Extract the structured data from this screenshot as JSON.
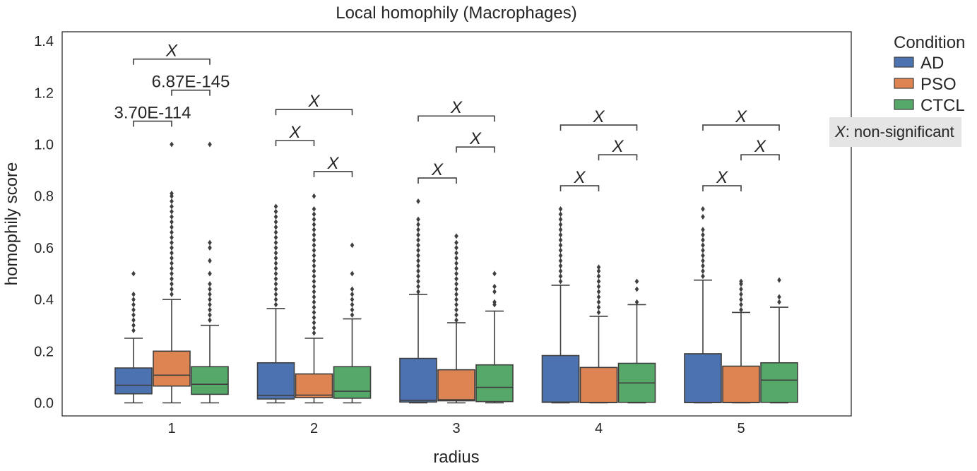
{
  "chart_data": {
    "type": "box",
    "title": "Local homophily (Macrophages)",
    "xlabel": "radius",
    "ylabel": "homophily score",
    "categories": [
      "1",
      "2",
      "3",
      "4",
      "5"
    ],
    "ylim": [
      -0.05,
      1.44
    ],
    "yticks": [
      "0.0",
      "0.2",
      "0.4",
      "0.6",
      "0.8",
      "1.0",
      "1.2",
      "1.4"
    ],
    "grid": false,
    "legend": {
      "title": "Condition",
      "placement": "outside-top-right",
      "entries": [
        "AD",
        "PSO",
        "CTCL"
      ]
    },
    "colors": {
      "AD": "#4c72b0",
      "PSO": "#dd8452",
      "CTCL": "#55a868",
      "line": "#3f3f3f",
      "note_bg": "#e5e5e5"
    },
    "series": [
      {
        "name": "AD",
        "boxes": [
          {
            "min": 0.0,
            "q1": 0.035,
            "median": 0.068,
            "q3": 0.135,
            "max": 0.25,
            "outliers": [
              0.28,
              0.3,
              0.32,
              0.34,
              0.36,
              0.38,
              0.4,
              0.42,
              0.5
            ]
          },
          {
            "min": 0.0,
            "q1": 0.015,
            "median": 0.028,
            "q3": 0.155,
            "max": 0.365,
            "outliers": [
              0.38,
              0.4,
              0.42,
              0.44,
              0.46,
              0.48,
              0.5,
              0.52,
              0.54,
              0.56,
              0.58,
              0.6,
              0.62,
              0.64,
              0.66,
              0.68,
              0.7,
              0.72,
              0.74,
              0.76
            ]
          },
          {
            "min": 0.0,
            "q1": 0.003,
            "median": 0.01,
            "q3": 0.172,
            "max": 0.42,
            "outliers": [
              0.43,
              0.45,
              0.47,
              0.49,
              0.51,
              0.53,
              0.55,
              0.57,
              0.59,
              0.61,
              0.63,
              0.65,
              0.67,
              0.69,
              0.71,
              0.78
            ]
          },
          {
            "min": 0.0,
            "q1": 0.002,
            "median": 0.003,
            "q3": 0.183,
            "max": 0.455,
            "outliers": [
              0.47,
              0.49,
              0.51,
              0.53,
              0.55,
              0.57,
              0.59,
              0.61,
              0.63,
              0.65,
              0.67,
              0.69,
              0.71,
              0.73,
              0.75
            ]
          },
          {
            "min": 0.0,
            "q1": 0.001,
            "median": 0.002,
            "q3": 0.19,
            "max": 0.475,
            "outliers": [
              0.49,
              0.51,
              0.53,
              0.55,
              0.57,
              0.59,
              0.61,
              0.63,
              0.65,
              0.67,
              0.72,
              0.75
            ]
          }
        ]
      },
      {
        "name": "PSO",
        "boxes": [
          {
            "min": 0.0,
            "q1": 0.065,
            "median": 0.107,
            "q3": 0.2,
            "max": 0.4,
            "outliers": [
              0.42,
              0.44,
              0.46,
              0.48,
              0.5,
              0.52,
              0.54,
              0.56,
              0.58,
              0.6,
              0.62,
              0.64,
              0.66,
              0.68,
              0.7,
              0.72,
              0.74,
              0.76,
              0.78,
              0.8,
              0.81,
              1.0
            ]
          },
          {
            "min": 0.0,
            "q1": 0.02,
            "median": 0.03,
            "q3": 0.112,
            "max": 0.25,
            "outliers": [
              0.27,
              0.29,
              0.31,
              0.33,
              0.35,
              0.37,
              0.39,
              0.41,
              0.43,
              0.45,
              0.47,
              0.49,
              0.51,
              0.53,
              0.55,
              0.57,
              0.59,
              0.61,
              0.63,
              0.65,
              0.67,
              0.69,
              0.71,
              0.73,
              0.75,
              0.8
            ]
          },
          {
            "min": 0.0,
            "q1": 0.008,
            "median": 0.012,
            "q3": 0.128,
            "max": 0.31,
            "outliers": [
              0.32,
              0.34,
              0.36,
              0.38,
              0.4,
              0.42,
              0.44,
              0.46,
              0.48,
              0.5,
              0.52,
              0.54,
              0.56,
              0.58,
              0.6,
              0.62,
              0.645
            ]
          },
          {
            "min": 0.0,
            "q1": 0.001,
            "median": 0.002,
            "q3": 0.137,
            "max": 0.335,
            "outliers": [
              0.35,
              0.37,
              0.39,
              0.41,
              0.43,
              0.45,
              0.47,
              0.49,
              0.51,
              0.525
            ]
          },
          {
            "min": 0.0,
            "q1": 0.001,
            "median": 0.002,
            "q3": 0.142,
            "max": 0.35,
            "outliers": [
              0.36,
              0.38,
              0.4,
              0.42,
              0.44,
              0.46,
              0.47
            ]
          }
        ]
      },
      {
        "name": "CTCL",
        "boxes": [
          {
            "min": 0.0,
            "q1": 0.033,
            "median": 0.072,
            "q3": 0.14,
            "max": 0.3,
            "outliers": [
              0.32,
              0.34,
              0.36,
              0.38,
              0.4,
              0.42,
              0.44,
              0.46,
              0.5,
              0.55,
              0.6,
              0.62,
              1.0
            ]
          },
          {
            "min": 0.0,
            "q1": 0.018,
            "median": 0.045,
            "q3": 0.14,
            "max": 0.325,
            "outliers": [
              0.34,
              0.36,
              0.38,
              0.4,
              0.42,
              0.44,
              0.5,
              0.61
            ]
          },
          {
            "min": 0.0,
            "q1": 0.005,
            "median": 0.06,
            "q3": 0.147,
            "max": 0.355,
            "outliers": [
              0.38,
              0.39,
              0.43,
              0.45,
              0.5
            ]
          },
          {
            "min": 0.0,
            "q1": 0.002,
            "median": 0.077,
            "q3": 0.153,
            "max": 0.38,
            "outliers": [
              0.39,
              0.44,
              0.47
            ]
          },
          {
            "min": 0.0,
            "q1": 0.002,
            "median": 0.088,
            "q3": 0.155,
            "max": 0.37,
            "outliers": [
              0.39,
              0.41,
              0.475
            ]
          }
        ]
      }
    ],
    "annotations": [
      {
        "category": "1",
        "from": "AD",
        "to": "PSO",
        "y": 1.09,
        "label": "3.70E-114",
        "italic": false
      },
      {
        "category": "1",
        "from": "PSO",
        "to": "CTCL",
        "y": 1.21,
        "label": "6.87E-145",
        "italic": false
      },
      {
        "category": "1",
        "from": "AD",
        "to": "CTCL",
        "y": 1.33,
        "label": "X",
        "italic": true
      },
      {
        "category": "2",
        "from": "AD",
        "to": "PSO",
        "y": 1.015,
        "label": "X",
        "italic": true
      },
      {
        "category": "2",
        "from": "PSO",
        "to": "CTCL",
        "y": 0.895,
        "label": "X",
        "italic": true
      },
      {
        "category": "2",
        "from": "AD",
        "to": "CTCL",
        "y": 1.135,
        "label": "X",
        "italic": true
      },
      {
        "category": "3",
        "from": "AD",
        "to": "PSO",
        "y": 0.87,
        "label": "X",
        "italic": true
      },
      {
        "category": "3",
        "from": "PSO",
        "to": "CTCL",
        "y": 0.99,
        "label": "X",
        "italic": true
      },
      {
        "category": "3",
        "from": "AD",
        "to": "CTCL",
        "y": 1.11,
        "label": "X",
        "italic": true
      },
      {
        "category": "4",
        "from": "AD",
        "to": "PSO",
        "y": 0.84,
        "label": "X",
        "italic": true
      },
      {
        "category": "4",
        "from": "PSO",
        "to": "CTCL",
        "y": 0.96,
        "label": "X",
        "italic": true
      },
      {
        "category": "4",
        "from": "AD",
        "to": "CTCL",
        "y": 1.075,
        "label": "X",
        "italic": true
      },
      {
        "category": "5",
        "from": "AD",
        "to": "PSO",
        "y": 0.84,
        "label": "X",
        "italic": true
      },
      {
        "category": "5",
        "from": "PSO",
        "to": "CTCL",
        "y": 0.96,
        "label": "X",
        "italic": true
      },
      {
        "category": "5",
        "from": "AD",
        "to": "CTCL",
        "y": 1.075,
        "label": "X",
        "italic": true
      }
    ],
    "note": {
      "symbol": "X",
      "text": ": non-significant"
    }
  }
}
